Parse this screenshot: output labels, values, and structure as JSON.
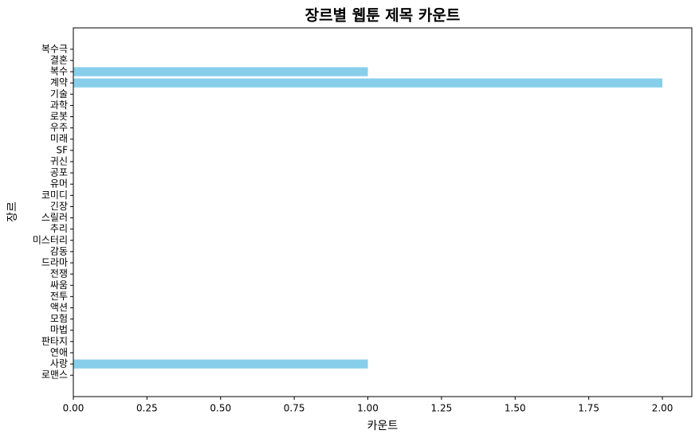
{
  "chart_data": {
    "type": "barh",
    "title": "장르별 웹툰 제목 카운트",
    "x_label": "카운트",
    "y_label": "장르",
    "categories": [
      "로맨스",
      "사랑",
      "연애",
      "판타지",
      "마법",
      "모험",
      "액션",
      "전투",
      "싸움",
      "전쟁",
      "드라마",
      "감동",
      "미스터리",
      "추리",
      "스릴러",
      "긴장",
      "코미디",
      "유머",
      "공포",
      "귀신",
      "SF",
      "미래",
      "우주",
      "로봇",
      "과학",
      "기술",
      "계약",
      "복수",
      "결혼",
      "복수극"
    ],
    "values": [
      0,
      1,
      0,
      0,
      0,
      0,
      0,
      0,
      0,
      0,
      0,
      0,
      0,
      0,
      0,
      0,
      0,
      0,
      0,
      0,
      0,
      0,
      0,
      0,
      0,
      0,
      2,
      1,
      0,
      0
    ],
    "color": "#87ceeb",
    "xlim": [
      0,
      2.1
    ],
    "xticks": [
      {
        "value": 0,
        "label": "0.00"
      },
      {
        "value": 0.25,
        "label": "0.25"
      },
      {
        "value": 0.5,
        "label": "0.50"
      },
      {
        "value": 0.75,
        "label": "0.75"
      },
      {
        "value": 1,
        "label": "1.00"
      },
      {
        "value": 1.25,
        "label": "1.25"
      },
      {
        "value": 1.5,
        "label": "1.50"
      },
      {
        "value": 1.75,
        "label": "1.75"
      },
      {
        "value": 2,
        "label": "2.00"
      }
    ]
  }
}
